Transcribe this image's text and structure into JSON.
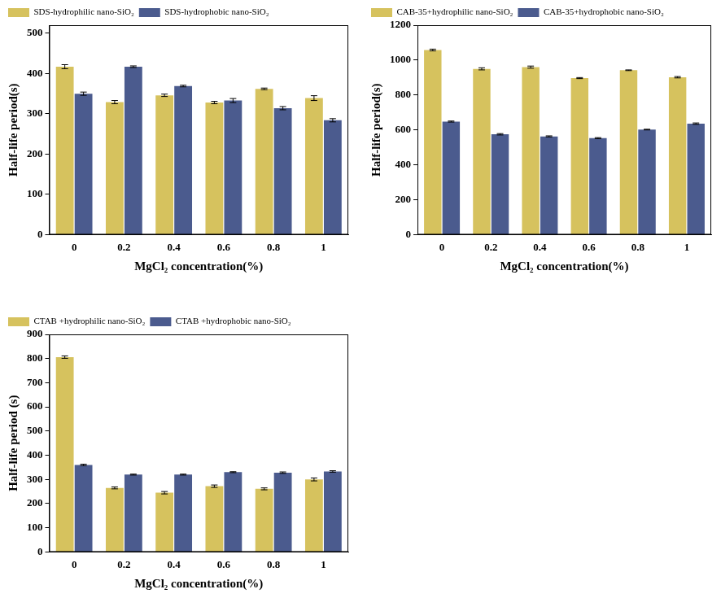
{
  "chart_data": [
    {
      "type": "bar",
      "x_label": "MgCl₂ concentration(%)",
      "y_label": "Half-life period(s)",
      "categories": [
        "0",
        "0.2",
        "0.4",
        "0.6",
        "0.8",
        "1"
      ],
      "series": [
        {
          "name": "SDS-hydrophilic nano-SiO₂",
          "color": "#d6c25e",
          "values": [
            417,
            329,
            346,
            328,
            362,
            339
          ],
          "errors": [
            5,
            4,
            3,
            3,
            2,
            6
          ]
        },
        {
          "name": "SDS-hydrophobic nano-SiO₂",
          "color": "#4b5b8e",
          "values": [
            350,
            417,
            369,
            333,
            314,
            284
          ],
          "errors": [
            4,
            2,
            2,
            5,
            4,
            4
          ]
        }
      ],
      "ylim": [
        0,
        520
      ],
      "yticks": [
        0,
        100,
        200,
        300,
        400,
        500
      ],
      "grid": false,
      "legend": "top left"
    },
    {
      "type": "bar",
      "x_label": "MgCl₂ concentration(%)",
      "y_label": "Half-life period(s)",
      "categories": [
        "0",
        "0.2",
        "0.4",
        "0.6",
        "0.8",
        "1"
      ],
      "series": [
        {
          "name": "CAB-35+hydrophilic nano-SiO₂",
          "color": "#d6c25e",
          "values": [
            1058,
            950,
            960,
            897,
            942,
            902
          ],
          "errors": [
            5,
            6,
            6,
            3,
            2,
            4
          ]
        },
        {
          "name": "CAB-35+hydrophobic nano-SiO₂",
          "color": "#4b5b8e",
          "values": [
            648,
            575,
            563,
            553,
            602,
            636
          ],
          "errors": [
            3,
            4,
            3,
            3,
            2,
            4
          ]
        }
      ],
      "ylim": [
        0,
        1200
      ],
      "yticks": [
        0,
        200,
        400,
        600,
        800,
        1000,
        1200
      ],
      "grid": false,
      "legend": "top left"
    },
    {
      "type": "bar",
      "x_label": "MgCl₂ concentration(%)",
      "y_label": "Half-life period (s)",
      "categories": [
        "0",
        "0.2",
        "0.4",
        "0.6",
        "0.8",
        "1"
      ],
      "series": [
        {
          "name": "CTAB +hydrophilic nano-SiO₂",
          "color": "#d6c25e",
          "values": [
            806,
            265,
            245,
            272,
            261,
            300
          ],
          "errors": [
            5,
            4,
            5,
            5,
            4,
            6
          ]
        },
        {
          "name": "CTAB +hydrophobic nano-SiO₂",
          "color": "#4b5b8e",
          "values": [
            360,
            320,
            320,
            330,
            328,
            333
          ],
          "errors": [
            3,
            2,
            2,
            2,
            3,
            3
          ]
        }
      ],
      "ylim": [
        0,
        900
      ],
      "yticks": [
        0,
        100,
        200,
        300,
        400,
        500,
        600,
        700,
        800,
        900
      ],
      "grid": false,
      "legend": "top left"
    }
  ]
}
